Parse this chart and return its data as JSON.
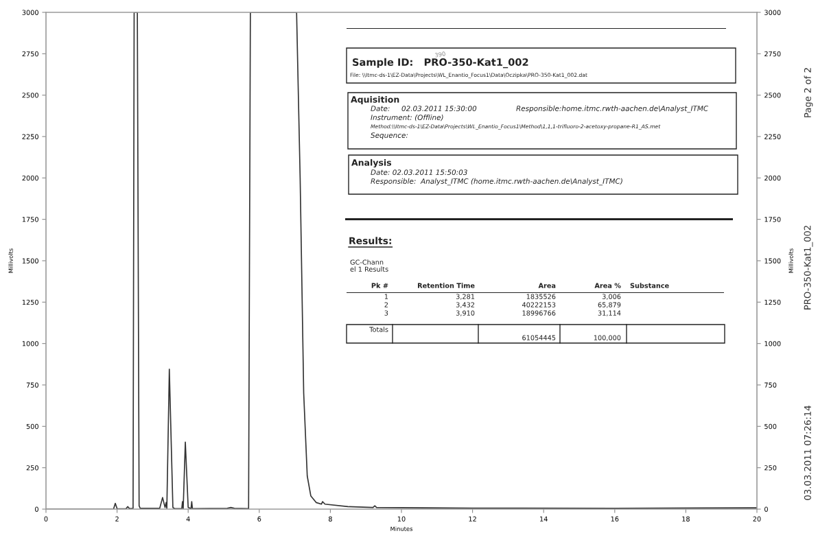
{
  "chart_data": {
    "type": "line",
    "xlabel": "Minutes",
    "ylabel": "Millivolts",
    "y2label": "Millivolts",
    "series": [
      {
        "color": "#333333",
        "x": [
          0,
          1.9,
          1.95,
          2.0,
          2.25,
          2.3,
          2.35,
          2.45,
          2.48,
          2.57,
          2.62,
          2.65,
          3.2,
          3.28,
          3.35,
          3.38,
          3.4,
          3.47,
          3.57,
          3.62,
          3.82,
          3.84,
          3.86,
          3.92,
          4.0,
          4.08,
          4.1,
          4.12,
          5.1,
          5.2,
          5.3,
          5.7,
          5.75,
          7.05,
          7.15,
          7.25,
          7.35,
          7.45,
          7.6,
          7.75,
          7.78,
          7.85,
          8.5,
          9.2,
          9.25,
          9.3,
          12,
          16,
          20
        ],
        "values": [
          0,
          0,
          35,
          3,
          2,
          15,
          3,
          5,
          3000,
          3000,
          20,
          5,
          5,
          70,
          10,
          40,
          5,
          845,
          10,
          3,
          3,
          45,
          3,
          405,
          10,
          3,
          45,
          3,
          5,
          10,
          5,
          3,
          3000,
          3000,
          2000,
          700,
          200,
          80,
          40,
          30,
          45,
          30,
          15,
          10,
          20,
          10,
          6,
          5,
          8
        ]
      }
    ],
    "xlim": [
      0,
      20
    ],
    "xticks": [
      0,
      2,
      4,
      6,
      8,
      10,
      12,
      14,
      16,
      18,
      20
    ],
    "ylim": [
      0,
      3000
    ],
    "yticks": [
      0,
      250,
      500,
      750,
      1000,
      1250,
      1500,
      1750,
      2000,
      2250,
      2500,
      2750,
      3000
    ],
    "y2lim": [
      0,
      3000
    ],
    "y2ticks": [
      0,
      250,
      500,
      750,
      1000,
      1250,
      1500,
      1750,
      2000,
      2250,
      2500,
      2750,
      3000
    ],
    "grid": false,
    "legend": false,
    "marker": "none",
    "line_style": "solid",
    "annotations": [
      "Sample ID:   PRO-350-Kat1_002",
      "390",
      "File: \\\\Itmc-ds-1\\EZ-Data\\Projects\\WL_Enantio_Focus1\\Data\\Oczipka\\PRO-350-Kat1_002.dat",
      "Aquisition",
      "Date:     02.03.2011 15:30:00",
      "Responsible:home.itmc.rwth-aachen.de\\Analyst_ITMC",
      "Instrument: (Offline)",
      "Method:\\\\Itmc-ds-1\\EZ-Data\\Projects\\WL_Enantio_Focus1\\Method\\1,1,1-trifluoro-2-acetoxy-propane-R1_AS.met",
      "Sequence:",
      "Analysis",
      "Date: 02.03.2011 15:50:03",
      "Responsible:  Analyst_ITMC (home.itmc.rwth-aachen.de\\Analyst_ITMC)",
      "Results:",
      "GC-Chann\nel 1 Results",
      "Pk #",
      "Retention Time",
      "Area",
      "Area %",
      "Substance",
      "1",
      "3,281",
      "1835526",
      "3,006",
      "2",
      "3,432",
      "40222153",
      "65,879",
      "3",
      "3,910",
      "18996766",
      "31,114",
      "Totals",
      "61054445",
      "100,000",
      "Page 2 of 2",
      "PRO-350-Kat1_002",
      "03.03.2011 07:26:14"
    ]
  }
}
